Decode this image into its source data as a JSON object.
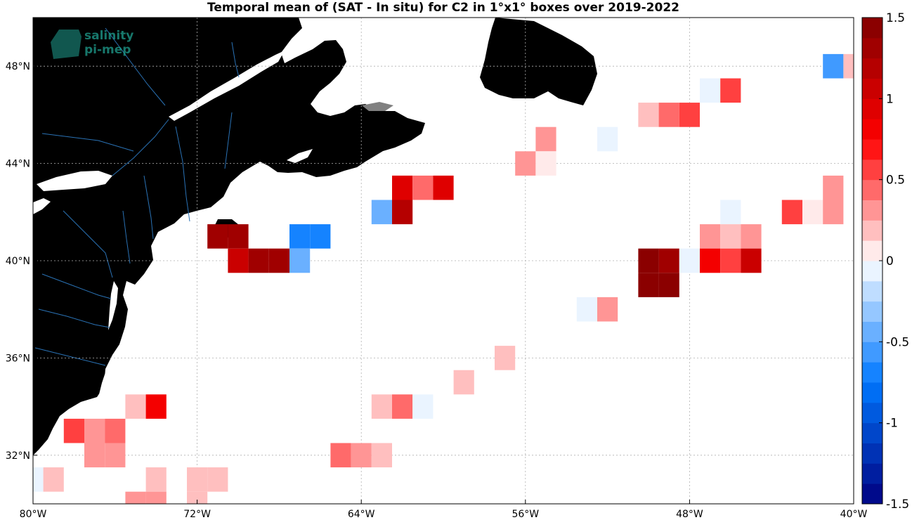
{
  "title": "Temporal mean of (SAT - In situ) for C2 in 1°x1° boxes over 2019-2022",
  "logo": {
    "line1": "salinity",
    "line2": "pi-mep"
  },
  "colors": {
    "land": "#808080",
    "river": "#2a72b5",
    "coast": "#000000",
    "grid": "#b0b0b0"
  },
  "map": {
    "lon_range": [
      -80,
      -40
    ],
    "lat_range": [
      30,
      50
    ],
    "lon_ticks": [
      {
        "value": -80,
        "label": "80°W"
      },
      {
        "value": -72,
        "label": "72°W"
      },
      {
        "value": -64,
        "label": "64°W"
      },
      {
        "value": -56,
        "label": "56°W"
      },
      {
        "value": -48,
        "label": "48°W"
      },
      {
        "value": -40,
        "label": "40°W"
      }
    ],
    "lat_ticks": [
      {
        "value": 32,
        "label": "32°N"
      },
      {
        "value": 36,
        "label": "36°N"
      },
      {
        "value": 40,
        "label": "40°N"
      },
      {
        "value": 44,
        "label": "44°N"
      },
      {
        "value": 48,
        "label": "48°N"
      }
    ]
  },
  "colorbar": {
    "range": [
      -1.5,
      1.5
    ],
    "ticks": [
      {
        "value": 1.5,
        "label": "1.5"
      },
      {
        "value": 1,
        "label": "1"
      },
      {
        "value": 0.5,
        "label": "0.5"
      },
      {
        "value": 0,
        "label": "0"
      },
      {
        "value": -0.5,
        "label": "-0.5"
      },
      {
        "value": -1,
        "label": "-1"
      },
      {
        "value": -1.5,
        "label": "-1.5"
      }
    ]
  },
  "chart_data": {
    "type": "heatmap",
    "title": "Temporal mean of (SAT - In situ) for C2 in 1°x1° boxes over 2019-2022",
    "xlim": [
      -80,
      -40
    ],
    "ylim": [
      30,
      50
    ],
    "zlim": [
      -1.5,
      1.5
    ],
    "cells": [
      {
        "lon": -41,
        "lat": 48,
        "value": -0.6
      },
      {
        "lon": -40,
        "lat": 48,
        "value": 0.2
      },
      {
        "lon": -47,
        "lat": 47,
        "value": -0.1
      },
      {
        "lon": -46,
        "lat": 47,
        "value": 0.5
      },
      {
        "lon": -50,
        "lat": 46,
        "value": 0.15
      },
      {
        "lon": -49,
        "lat": 46,
        "value": 0.4
      },
      {
        "lon": -48,
        "lat": 46,
        "value": 0.5
      },
      {
        "lon": -55,
        "lat": 45,
        "value": 0.25
      },
      {
        "lon": -52,
        "lat": 45,
        "value": -0.1
      },
      {
        "lon": -56,
        "lat": 44,
        "value": 0.25
      },
      {
        "lon": -55,
        "lat": 44,
        "value": 0.1
      },
      {
        "lon": -62,
        "lat": 43,
        "value": 0.9
      },
      {
        "lon": -61,
        "lat": 43,
        "value": 0.4
      },
      {
        "lon": -60,
        "lat": 43,
        "value": 0.9
      },
      {
        "lon": -41,
        "lat": 43,
        "value": 0.25
      },
      {
        "lon": -63,
        "lat": 42,
        "value": -0.45
      },
      {
        "lon": -62,
        "lat": 42,
        "value": 1.15
      },
      {
        "lon": -46,
        "lat": 42,
        "value": -0.1
      },
      {
        "lon": -43,
        "lat": 42,
        "value": 0.5
      },
      {
        "lon": -42,
        "lat": 42,
        "value": 0.1
      },
      {
        "lon": -41,
        "lat": 42,
        "value": 0.25
      },
      {
        "lon": -71,
        "lat": 41,
        "value": 1.35
      },
      {
        "lon": -70,
        "lat": 41,
        "value": 1.35
      },
      {
        "lon": -67,
        "lat": 41,
        "value": -0.65
      },
      {
        "lon": -66,
        "lat": 41,
        "value": -0.7
      },
      {
        "lon": -47,
        "lat": 41,
        "value": 0.25
      },
      {
        "lon": -46,
        "lat": 41,
        "value": 0.15
      },
      {
        "lon": -45,
        "lat": 41,
        "value": 0.25
      },
      {
        "lon": -70,
        "lat": 40,
        "value": 1.0
      },
      {
        "lon": -69,
        "lat": 40,
        "value": 1.25
      },
      {
        "lon": -68,
        "lat": 40,
        "value": 1.25
      },
      {
        "lon": -67,
        "lat": 40,
        "value": -0.4
      },
      {
        "lon": -50,
        "lat": 40,
        "value": 1.45
      },
      {
        "lon": -49,
        "lat": 40,
        "value": 1.3
      },
      {
        "lon": -48,
        "lat": 40,
        "value": -0.1
      },
      {
        "lon": -47,
        "lat": 40,
        "value": 0.85
      },
      {
        "lon": -46,
        "lat": 40,
        "value": 0.6
      },
      {
        "lon": -45,
        "lat": 40,
        "value": 1.0
      },
      {
        "lon": -50,
        "lat": 39,
        "value": 1.45
      },
      {
        "lon": -49,
        "lat": 39,
        "value": 1.45
      },
      {
        "lon": -53,
        "lat": 38,
        "value": -0.1
      },
      {
        "lon": -52,
        "lat": 38,
        "value": 0.25
      },
      {
        "lon": -57,
        "lat": 36,
        "value": 0.15
      },
      {
        "lon": -59,
        "lat": 35,
        "value": 0.15
      },
      {
        "lon": -75,
        "lat": 34,
        "value": 0.2
      },
      {
        "lon": -74,
        "lat": 34,
        "value": 0.85
      },
      {
        "lon": -63,
        "lat": 34,
        "value": 0.15
      },
      {
        "lon": -62,
        "lat": 34,
        "value": 0.4
      },
      {
        "lon": -61,
        "lat": 34,
        "value": -0.1
      },
      {
        "lon": -78,
        "lat": 33,
        "value": 0.55
      },
      {
        "lon": -77,
        "lat": 33,
        "value": 0.25
      },
      {
        "lon": -76,
        "lat": 33,
        "value": 0.4
      },
      {
        "lon": -77,
        "lat": 32,
        "value": 0.25
      },
      {
        "lon": -76,
        "lat": 32,
        "value": 0.25
      },
      {
        "lon": -65,
        "lat": 32,
        "value": 0.45
      },
      {
        "lon": -64,
        "lat": 32,
        "value": 0.3
      },
      {
        "lon": -63,
        "lat": 32,
        "value": 0.2
      },
      {
        "lon": -80,
        "lat": 31,
        "value": -0.1
      },
      {
        "lon": -79,
        "lat": 31,
        "value": 0.15
      },
      {
        "lon": -74,
        "lat": 31,
        "value": 0.15
      },
      {
        "lon": -72,
        "lat": 31,
        "value": 0.15
      },
      {
        "lon": -71,
        "lat": 31,
        "value": 0.15
      },
      {
        "lon": -75,
        "lat": 30,
        "value": 0.3
      },
      {
        "lon": -74,
        "lat": 30,
        "value": 0.3
      },
      {
        "lon": -72,
        "lat": 30,
        "value": 0.2
      }
    ]
  }
}
